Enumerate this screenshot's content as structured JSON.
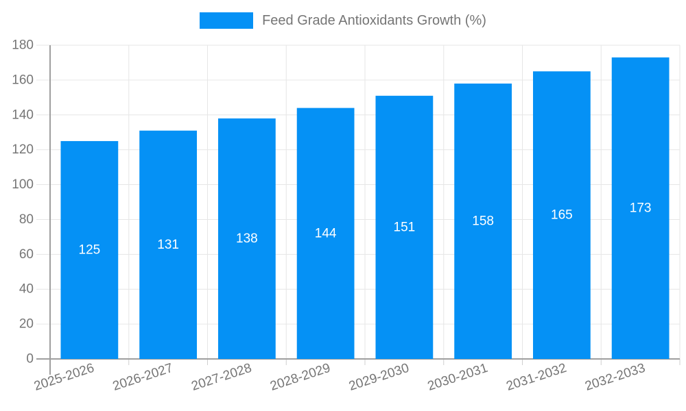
{
  "chart_data": {
    "type": "bar",
    "title": "",
    "legend_label": "Feed Grade Antioxidants Growth (%)",
    "legend_position": "top",
    "categories": [
      "2025-2026",
      "2026-2027",
      "2027-2028",
      "2028-2029",
      "2029-2030",
      "2030-2031",
      "2031-2032",
      "2032-2033"
    ],
    "series": [
      {
        "name": "Feed Grade Antioxidants Growth (%)",
        "values": [
          125,
          131,
          138,
          144,
          151,
          158,
          165,
          173
        ]
      }
    ],
    "value_labels_shown": true,
    "xlabel": "",
    "ylabel": "",
    "ylim": [
      0,
      180
    ],
    "ytick_step": 20,
    "grid": true,
    "colors": {
      "bar": "#0591f5",
      "axis_text": "#757575",
      "grid_line": "#e6e6e6",
      "axis_line": "#9e9e9e",
      "value_label": "#ffffff"
    }
  }
}
